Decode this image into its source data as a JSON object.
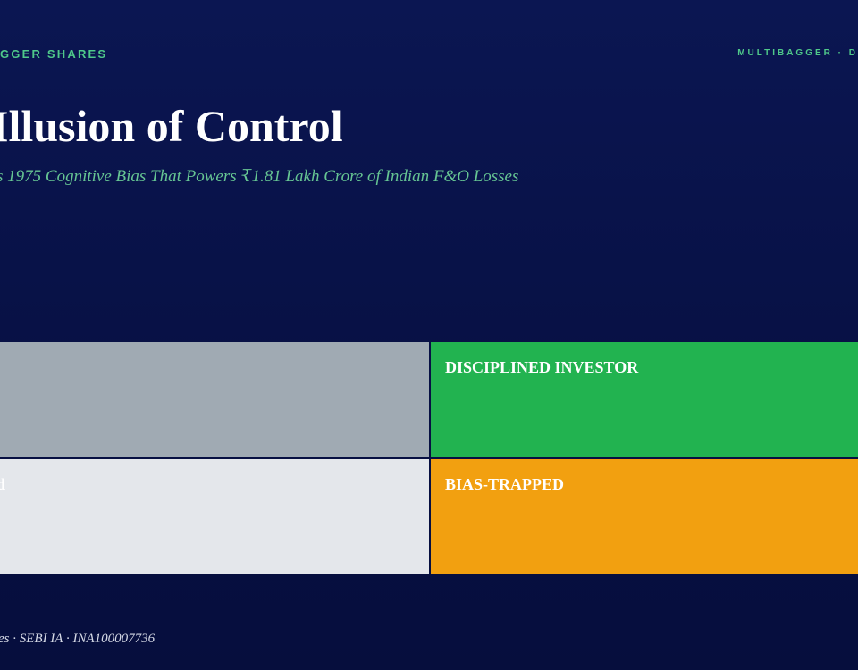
{
  "header": {
    "kicker": "GGER SHARES",
    "brand": "MULTIBAGGER · D",
    "title": "Illusion of Control",
    "subtitle": "s 1975 Cognitive Bias That Powers ₹1.81 Lakh Crore of Indian F&O Losses"
  },
  "quadrants": [
    {
      "color": "#a0aab3"
    },
    {
      "label": "DISCIPLINED INVESTOR"
    },
    {
      "label": "d"
    },
    {
      "label": "BIAS-TRAPPED"
    }
  ],
  "footer": {
    "text": "es · SEBI IA · INA100007736"
  }
}
